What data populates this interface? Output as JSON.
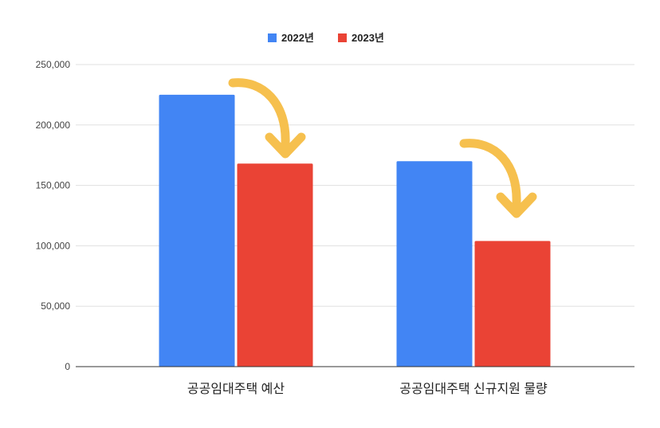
{
  "chart_data": {
    "type": "bar",
    "title": "",
    "xlabel": "",
    "ylabel": "",
    "categories": [
      "공공임대주택 예산",
      "공공임대주택 신규지원 물량"
    ],
    "series": [
      {
        "name": "2022년",
        "color": "#4285f4",
        "values": [
          225000,
          170000
        ]
      },
      {
        "name": "2023년",
        "color": "#ea4335",
        "values": [
          168000,
          104000
        ]
      }
    ],
    "ylim": [
      0,
      250000
    ],
    "yticks": [
      "0",
      "50,000",
      "100,000",
      "150,000",
      "200,000",
      "250,000"
    ],
    "grid": true,
    "legend": "top",
    "annotations": [
      {
        "type": "curved-arrow-down",
        "color": "#f6c04e",
        "category": "공공임대주택 예산"
      },
      {
        "type": "curved-arrow-down",
        "color": "#f6c04e",
        "category": "공공임대주택 신규지원 물량"
      }
    ]
  }
}
